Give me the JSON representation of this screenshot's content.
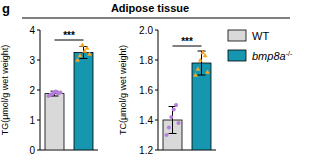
{
  "figure": {
    "panel": "g",
    "title": "Adipose tissue"
  },
  "chart_data": [
    {
      "type": "bar",
      "y_label": "TG(μmol/g wet weight)",
      "categories": [
        null
      ],
      "ylim": [
        0,
        4
      ],
      "yticks": [
        0,
        1,
        2,
        3,
        4
      ],
      "tick_labels": "y",
      "annotation": "***",
      "series": [
        {
          "name": "WT",
          "color": "#d9d9d9",
          "marker": "circle",
          "values": [
            1.88
          ],
          "errors": [
            0.08
          ],
          "points": [
            [
              1.8,
              1.85,
              1.9,
              1.95,
              1.88,
              1.92
            ]
          ]
        },
        {
          "name": "bmp8a-/-",
          "color": "#1796b0",
          "marker": "triangle",
          "values": [
            3.25
          ],
          "errors": [
            0.2
          ],
          "points": [
            [
              3.0,
              3.15,
              3.5,
              3.3,
              3.4,
              3.2
            ]
          ]
        }
      ]
    },
    {
      "type": "bar",
      "y_label": "TC(μmol/g wet weight)",
      "categories": [
        null
      ],
      "ylim": [
        1.2,
        2.0
      ],
      "yticks": [
        1.2,
        1.4,
        1.6,
        1.8,
        {
          "value": 2,
          "label": "2.0"
        }
      ],
      "tick_labels": "y",
      "annotation": "***",
      "legend": "right",
      "series": [
        {
          "name": "WT",
          "color": "#d9d9d9",
          "marker": "circle",
          "values": [
            1.4
          ],
          "errors": [
            0.09
          ],
          "points": [
            [
              1.3,
              1.35,
              1.42,
              1.47,
              1.5,
              1.38
            ]
          ]
        },
        {
          "name": "bmp8a-/-",
          "color": "#1796b0",
          "marker": "triangle",
          "values": [
            1.78
          ],
          "errors": [
            0.08
          ],
          "points": [
            [
              1.7,
              1.74,
              1.8,
              1.85,
              1.83,
              1.72
            ]
          ]
        }
      ]
    }
  ]
}
